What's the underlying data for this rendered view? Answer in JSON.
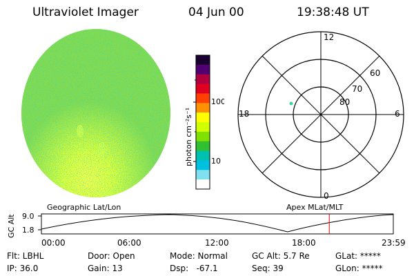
{
  "header": {
    "title": "Ultraviolet Imager",
    "date": "04 Jun 00",
    "time": "19:38:48 UT"
  },
  "colorbar": {
    "axis_label": "photon cm⁻²s⁻¹",
    "ticks": [
      "100",
      "10"
    ],
    "colors": [
      "#1a0030",
      "#500070",
      "#b00040",
      "#e00020",
      "#ff4000",
      "#ff9000",
      "#ffff00",
      "#d0ff00",
      "#80e000",
      "#30c030",
      "#00c0b0",
      "#00c0e0",
      "#80e0f0",
      "#ffffff"
    ]
  },
  "polar": {
    "labels_hour": {
      "top": "12",
      "left": "18",
      "right": "6",
      "bottom": "0"
    },
    "labels_lat": [
      "60",
      "70",
      "80"
    ]
  },
  "orbit": {
    "left_label": "Geographic Lat/Lon",
    "right_label": "Apex MLat/MLT",
    "axis_title": "GC Alt",
    "y_ticks": [
      "9.0",
      "1.8"
    ],
    "x_ticks": [
      "00:00",
      "06:00",
      "12:00",
      "18:00",
      "23:59"
    ],
    "marker_time_fraction": 0.818
  },
  "info": {
    "row1": {
      "flt": "Flt: LBHL",
      "door": "Door: Open",
      "mode": "Mode: Normal",
      "gc_alt": "GC Alt: 5.7 Re",
      "glat": "GLat: *****"
    },
    "row2": {
      "ip": "IP: 36.0",
      "gain": "Gain: 13",
      "dsp": "Dsp:   -67.1",
      "seq": "Seq: 39",
      "glon": "GLon: *****"
    }
  }
}
